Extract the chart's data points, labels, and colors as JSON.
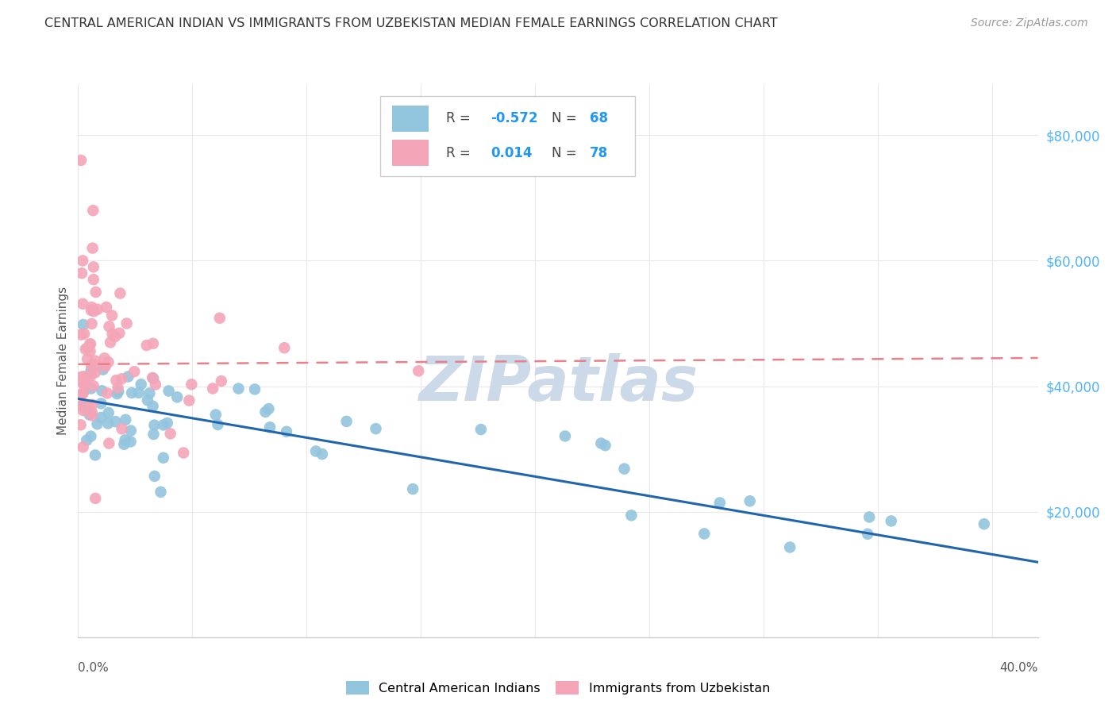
{
  "title": "CENTRAL AMERICAN INDIAN VS IMMIGRANTS FROM UZBEKISTAN MEDIAN FEMALE EARNINGS CORRELATION CHART",
  "source": "Source: ZipAtlas.com",
  "ylabel": "Median Female Earnings",
  "xlim": [
    0.0,
    0.42
  ],
  "ylim": [
    0,
    88000
  ],
  "color_blue": "#92c5de",
  "color_pink": "#f4a5b8",
  "color_line_blue": "#2166ac",
  "color_line_pink": "#e8808a",
  "color_title": "#333333",
  "color_source": "#999999",
  "color_watermark": "#ccd9e8",
  "color_ytick": "#4db3ff",
  "background_color": "#ffffff",
  "grid_color": "#e8e8e8"
}
